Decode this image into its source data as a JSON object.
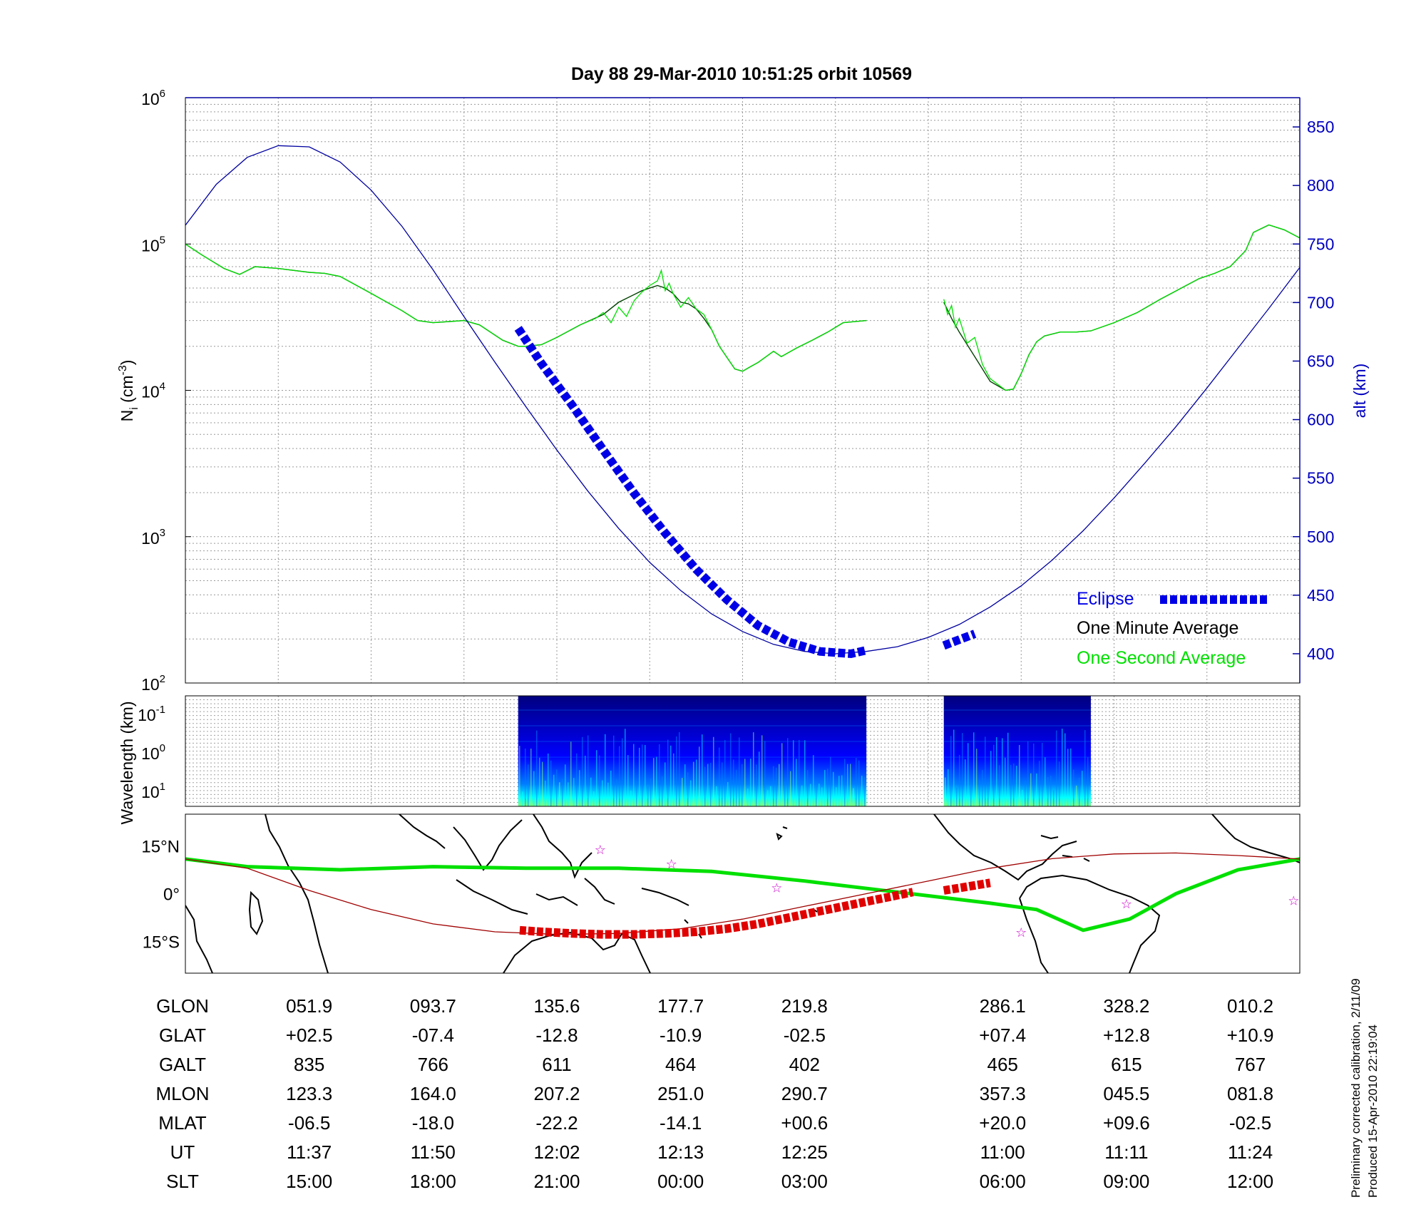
{
  "title": "Day 88  29-Mar-2010 10:51:25   orbit 10569",
  "colors": {
    "altitude": "#0000a0",
    "eclipse": "#0000e6",
    "one_minute": "#004000",
    "one_second": "#00e000",
    "track": "#00e000",
    "track_eclipse": "#e00000",
    "reference_track": "#a00000",
    "stars": "#cc00cc"
  },
  "legend": {
    "eclipse": "Eclipse",
    "one_minute": "One Minute Average",
    "one_second": "One Second Average"
  },
  "side_notes": [
    "Preliminary corrected calibration, 2/11/09",
    "Produced 15-Apr-2010 22:19:04"
  ],
  "chart_data": [
    {
      "type": "line",
      "panel": "ion density and altitude",
      "ylabel": "N",
      "ylabel_sub": "i",
      "ylabel_unit": " (cm",
      "ylabel_sup": "-3",
      "ylabel_close": ")",
      "yscale": "log",
      "ylim": [
        100,
        1000000
      ],
      "yticks": [
        {
          "value": 100,
          "base": "10",
          "exp": "2"
        },
        {
          "value": 1000,
          "base": "10",
          "exp": "3"
        },
        {
          "value": 10000,
          "base": "10",
          "exp": "4"
        },
        {
          "value": 100000,
          "base": "10",
          "exp": "5"
        },
        {
          "value": 1000000,
          "base": "10",
          "exp": "6"
        }
      ],
      "y2label": "alt (km)",
      "y2lim": [
        375,
        875
      ],
      "y2ticks": [
        400,
        450,
        500,
        550,
        600,
        650,
        700,
        750,
        800,
        850
      ],
      "grid": true,
      "legend_position": "bottom-right",
      "x_range_minutes": [
        0,
        144
      ],
      "series": [
        {
          "name": "One Minute Average",
          "x": [
            0,
            2,
            5,
            7,
            9,
            12,
            16,
            18,
            20,
            24,
            28,
            30,
            32,
            36,
            38,
            41,
            43,
            44,
            46,
            48,
            51,
            54,
            56,
            59,
            61,
            62,
            63,
            64,
            65,
            66,
            67,
            68,
            69,
            71,
            72,
            73,
            74,
            76,
            77,
            79,
            81,
            83,
            85,
            88
          ],
          "y": [
            100000,
            85000,
            68000,
            62000,
            70000,
            68000,
            64000,
            63000,
            60000,
            46000,
            35000,
            30000,
            29000,
            30000,
            28000,
            22000,
            20000,
            20000,
            20500,
            23000,
            28000,
            33000,
            40000,
            48000,
            52000,
            50000,
            46000,
            40000,
            39000,
            36000,
            31000,
            26000,
            20000,
            14000,
            13500,
            14500,
            15500,
            18500,
            17000,
            19500,
            22000,
            25000,
            29000,
            30000
          ]
        },
        {
          "name": "One Minute Average",
          "x": [
            98,
            99,
            100,
            102,
            104,
            106,
            107,
            108,
            109,
            110,
            111,
            113,
            115,
            117,
            120,
            123,
            126,
            129,
            131,
            133,
            135,
            137,
            138,
            140,
            142,
            144
          ],
          "y": [
            40000,
            31000,
            25000,
            17000,
            11500,
            10000,
            10200,
            13000,
            17500,
            21500,
            23500,
            25000,
            25000,
            25500,
            29000,
            34000,
            42000,
            51000,
            58000,
            63000,
            70000,
            90000,
            120000,
            135000,
            125000,
            110000
          ]
        },
        {
          "name": "One Second Average",
          "x": [
            0,
            2,
            5,
            7,
            9,
            12,
            16,
            18,
            20,
            24,
            28,
            30,
            32,
            36,
            38,
            41,
            43,
            44,
            46,
            48,
            51,
            53,
            54,
            55,
            56,
            57,
            58,
            59,
            60,
            61,
            61.5,
            62,
            62.5,
            63,
            64,
            65,
            66,
            67,
            68,
            69,
            71,
            72,
            73,
            74,
            76,
            77,
            79,
            81,
            83,
            85,
            88
          ],
          "y": [
            100000,
            85000,
            68000,
            62000,
            70000,
            68000,
            64000,
            63000,
            60000,
            46000,
            35000,
            30000,
            29000,
            30000,
            28000,
            22000,
            20000,
            20000,
            20500,
            23000,
            28000,
            31000,
            34000,
            29000,
            37000,
            32000,
            41000,
            47000,
            52000,
            56000,
            66000,
            48000,
            54000,
            46000,
            37000,
            43000,
            36000,
            33000,
            26000,
            20000,
            14000,
            13500,
            14500,
            15500,
            18500,
            17000,
            19500,
            22000,
            25000,
            29000,
            30000
          ]
        },
        {
          "name": "One Second Average",
          "x": [
            98,
            98.5,
            99,
            99.5,
            100,
            101,
            102,
            103,
            104,
            106,
            107,
            108,
            109,
            110,
            111,
            113,
            115,
            117,
            120,
            123,
            126,
            129,
            131,
            133,
            135,
            137,
            138,
            140,
            142,
            144
          ],
          "y": [
            42000,
            33000,
            38000,
            27000,
            31000,
            21000,
            23000,
            15000,
            12000,
            10000,
            10200,
            13000,
            17500,
            21500,
            23500,
            25000,
            25000,
            25500,
            29000,
            34000,
            42000,
            51000,
            58000,
            63000,
            70000,
            90000,
            120000,
            135000,
            125000,
            110000
          ]
        },
        {
          "name": "altitude",
          "axis": "right",
          "x": [
            0,
            4,
            8,
            12,
            16,
            20,
            24,
            28,
            32,
            36,
            40,
            44,
            48,
            52,
            56,
            60,
            64,
            68,
            72,
            76,
            80,
            84,
            88,
            92,
            96,
            100,
            104,
            108,
            112,
            116,
            120,
            124,
            128,
            132,
            136,
            140,
            144
          ],
          "y": [
            766,
            801,
            824,
            834,
            833,
            820,
            796,
            765,
            728,
            688,
            649,
            611,
            574,
            539,
            507,
            478,
            454,
            434,
            419,
            408,
            402,
            400,
            402,
            406,
            414,
            425,
            440,
            458,
            480,
            505,
            533,
            563,
            594,
            627,
            661,
            695,
            730
          ]
        },
        {
          "name": "Eclipse",
          "axis": "right",
          "x": [
            43,
            46,
            50,
            54,
            58,
            62,
            66,
            70,
            74,
            78,
            82,
            86,
            88
          ],
          "y": [
            678,
            648,
            612,
            574,
            537,
            503,
            472,
            446,
            424,
            410,
            402,
            400,
            403
          ]
        },
        {
          "name": "Eclipse",
          "axis": "right",
          "x": [
            98,
            100,
            102
          ],
          "y": [
            407,
            412,
            417
          ]
        }
      ]
    },
    {
      "type": "heatmap",
      "panel": "spectrogram",
      "ylabel": "Wavelength (km)",
      "yticks": [
        {
          "base": "10",
          "exp": "-1"
        },
        {
          "base": "10",
          "exp": "0"
        },
        {
          "base": "10",
          "exp": "1"
        }
      ],
      "data_intervals_minutes": [
        [
          43,
          88
        ],
        [
          98,
          117
        ]
      ],
      "colormap": [
        "#00007f",
        "#0000ff",
        "#007fff",
        "#00ffff",
        "#7fff7f",
        "#ffff00"
      ]
    },
    {
      "type": "line",
      "panel": "ground track map",
      "yticks": [
        "15°N",
        "0°",
        "15°S"
      ],
      "ylim": [
        -25,
        25
      ],
      "xlim_deg": [
        0,
        360
      ],
      "series": [
        {
          "name": "track",
          "lon": [
            0,
            20,
            50,
            80,
            110,
            140,
            170,
            200,
            230,
            260,
            275,
            290,
            305,
            320,
            340,
            360
          ],
          "lat": [
            10.9,
            8.5,
            7.5,
            8.5,
            8.0,
            8.0,
            7.0,
            4.0,
            0.5,
            -3.0,
            -5.0,
            -11.5,
            -8.0,
            0.0,
            7.5,
            10.9
          ]
        },
        {
          "name": "reference",
          "lon": [
            0,
            20,
            40,
            60,
            80,
            100,
            120,
            140,
            160,
            180,
            200,
            220,
            240,
            260,
            280,
            300,
            320,
            340,
            360
          ],
          "lat": [
            10.9,
            8.0,
            1.0,
            -5.0,
            -9.5,
            -12.0,
            -12.8,
            -12.5,
            -11.0,
            -8.0,
            -4.0,
            0.0,
            4.0,
            8.0,
            11.0,
            12.5,
            12.8,
            12.0,
            10.9
          ]
        },
        {
          "name": "eclipse track",
          "lon": [
            108,
            115,
            125,
            135,
            145,
            155,
            165,
            175,
            185,
            195,
            205,
            215,
            225,
            235
          ],
          "lat": [
            -11.5,
            -12.0,
            -12.5,
            -12.8,
            -12.8,
            -12.5,
            -12.0,
            -11.0,
            -9.5,
            -7.5,
            -5.5,
            -3.5,
            -1.5,
            0.5
          ]
        },
        {
          "name": "eclipse track",
          "lon": [
            245,
            250,
            255,
            260
          ],
          "lat": [
            1.0,
            1.8,
            2.6,
            3.4
          ]
        }
      ],
      "stars": [
        {
          "lon": 134,
          "lat": 14
        },
        {
          "lon": 157,
          "lat": 9.5
        },
        {
          "lon": 191,
          "lat": 2
        },
        {
          "lon": 270,
          "lat": -12
        },
        {
          "lon": 304,
          "lat": -3
        },
        {
          "lon": 358,
          "lat": -2
        }
      ]
    }
  ],
  "parameters": {
    "columns_minutes": [
      40,
      80,
      120,
      160,
      200,
      264,
      304,
      344
    ],
    "rows": [
      {
        "label": "GLON",
        "values": [
          "051.9",
          "093.7",
          "135.6",
          "177.7",
          "219.8",
          "286.1",
          "328.2",
          "010.2"
        ]
      },
      {
        "label": "GLAT",
        "values": [
          "+02.5",
          "-07.4",
          "-12.8",
          "-10.9",
          "-02.5",
          "+07.4",
          "+12.8",
          "+10.9"
        ]
      },
      {
        "label": "GALT",
        "values": [
          "835",
          "766",
          "611",
          "464",
          "402",
          "465",
          "615",
          "767"
        ]
      },
      {
        "label": "MLON",
        "values": [
          "123.3",
          "164.0",
          "207.2",
          "251.0",
          "290.7",
          "357.3",
          "045.5",
          "081.8"
        ]
      },
      {
        "label": "MLAT",
        "values": [
          "-06.5",
          "-18.0",
          "-22.2",
          "-14.1",
          "+00.6",
          "+20.0",
          "+09.6",
          "-02.5"
        ]
      },
      {
        "label": "UT",
        "values": [
          "11:37",
          "11:50",
          "12:02",
          "12:13",
          "12:25",
          "11:00",
          "11:11",
          "11:24"
        ]
      },
      {
        "label": "SLT",
        "values": [
          "15:00",
          "18:00",
          "21:00",
          "00:00",
          "03:00",
          "06:00",
          "09:00",
          "12:00"
        ]
      }
    ]
  }
}
